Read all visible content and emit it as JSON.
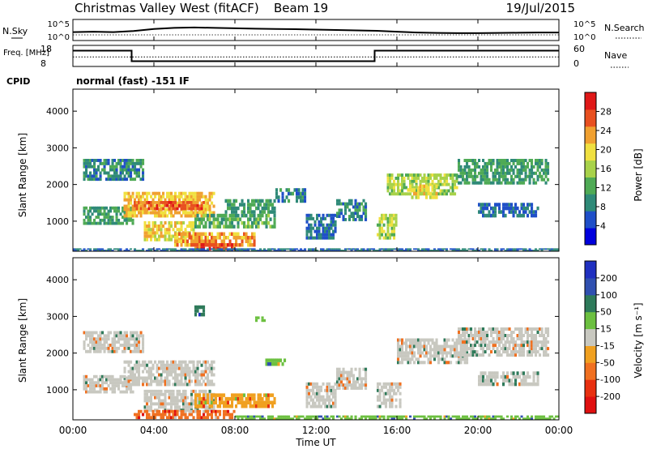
{
  "header": {
    "station": "Christmas Valley West (fitACF)",
    "beam": "Beam 19",
    "date": "19/Jul/2015"
  },
  "chart_data": [
    {
      "type": "line",
      "name": "noise-panel",
      "left_label": "N.Sky",
      "right_label": "N.Search",
      "left_ticks": [
        "10^5",
        "10^0"
      ],
      "right_ticks": [
        "10^5",
        "10^0"
      ],
      "series": [
        {
          "name": "N.Sky",
          "x": [
            0,
            1,
            2,
            3,
            4,
            5,
            6,
            7,
            8,
            9,
            10,
            11,
            12,
            13,
            14,
            15,
            16,
            17,
            18,
            19,
            20,
            21,
            22,
            23,
            24
          ],
          "y_fraction": [
            0.4,
            0.42,
            0.4,
            0.45,
            0.55,
            0.6,
            0.62,
            0.6,
            0.58,
            0.56,
            0.55,
            0.54,
            0.52,
            0.5,
            0.48,
            0.46,
            0.42,
            0.38,
            0.36,
            0.35,
            0.35,
            0.36,
            0.37,
            0.38,
            0.38
          ]
        }
      ]
    },
    {
      "type": "line",
      "name": "freq-panel",
      "left_label": "Freq. [MHz]",
      "right_label": "Nave",
      "left_ticks": [
        "18",
        "8"
      ],
      "right_ticks": [
        "60",
        "0"
      ],
      "series": [
        {
          "name": "Freq",
          "x": [
            0,
            2.9,
            2.9,
            14.9,
            14.9,
            24
          ],
          "y": [
            15.5,
            15.5,
            10.5,
            10.5,
            15.5,
            15.5
          ]
        },
        {
          "name": "Nave",
          "x": [
            0,
            24
          ],
          "y": [
            27,
            27
          ]
        }
      ]
    },
    {
      "type": "heatmap",
      "name": "power-panel",
      "cpid_label": "CPID",
      "cpid_text": "normal (fast) -151 IF",
      "ylabel": "Slant Range [km]",
      "ylim": [
        180,
        4600
      ],
      "yticks": [
        "1000",
        "2000",
        "3000",
        "4000"
      ],
      "colorbar": {
        "label": "Power [dB]",
        "ticks": [
          "4",
          "8",
          "12",
          "16",
          "20",
          "24",
          "28"
        ],
        "range": [
          0,
          32
        ],
        "colors": [
          "#0000dd",
          "#1f4fc8",
          "#2f8a78",
          "#4faa55",
          "#a8d24a",
          "#f0e040",
          "#f0a030",
          "#e85020",
          "#e01818"
        ]
      },
      "blobs": [
        {
          "t0": 0.5,
          "t1": 3.5,
          "r0": 2100,
          "r1": 2700,
          "v": 8
        },
        {
          "t0": 0.5,
          "t1": 3.0,
          "r0": 900,
          "r1": 1400,
          "v": 10
        },
        {
          "t0": 2.5,
          "t1": 7.0,
          "r0": 1100,
          "r1": 1800,
          "v": 22
        },
        {
          "t0": 3.0,
          "t1": 6.5,
          "r0": 1300,
          "r1": 1550,
          "v": 28
        },
        {
          "t0": 3.5,
          "t1": 6.0,
          "r0": 450,
          "r1": 1000,
          "v": 20
        },
        {
          "t0": 5.0,
          "t1": 9.0,
          "r0": 300,
          "r1": 700,
          "v": 24
        },
        {
          "t0": 6.0,
          "t1": 8.0,
          "r0": 200,
          "r1": 400,
          "v": 28
        },
        {
          "t0": 6.0,
          "t1": 10.0,
          "r0": 800,
          "r1": 1200,
          "v": 12
        },
        {
          "t0": 7.5,
          "t1": 10.0,
          "r0": 1200,
          "r1": 1600,
          "v": 10
        },
        {
          "t0": 10.0,
          "t1": 11.5,
          "r0": 1500,
          "r1": 1900,
          "v": 8
        },
        {
          "t0": 11.5,
          "t1": 13.0,
          "r0": 500,
          "r1": 1200,
          "v": 6
        },
        {
          "t0": 13.0,
          "t1": 14.5,
          "r0": 1000,
          "r1": 1600,
          "v": 8
        },
        {
          "t0": 15.0,
          "t1": 16.0,
          "r0": 500,
          "r1": 1200,
          "v": 16
        },
        {
          "t0": 15.5,
          "t1": 19.0,
          "r0": 1700,
          "r1": 2300,
          "v": 16
        },
        {
          "t0": 16.5,
          "t1": 18.0,
          "r0": 1600,
          "r1": 2000,
          "v": 20
        },
        {
          "t0": 19.0,
          "t1": 23.5,
          "r0": 2000,
          "r1": 2700,
          "v": 10
        },
        {
          "t0": 20.0,
          "t1": 23.0,
          "r0": 1100,
          "r1": 1500,
          "v": 6
        },
        {
          "t0": 0.0,
          "t1": 24.0,
          "r0": 180,
          "r1": 260,
          "v": 6
        }
      ]
    },
    {
      "type": "heatmap",
      "name": "velocity-panel",
      "ylabel": "Slant Range [km]",
      "xlabel": "Time UT",
      "ylim": [
        180,
        4600
      ],
      "yticks": [
        "1000",
        "2000",
        "3000",
        "4000"
      ],
      "xticks": [
        "00:00",
        "04:00",
        "08:00",
        "12:00",
        "16:00",
        "20:00",
        "00:00"
      ],
      "colorbar": {
        "label": "Velocity [m s⁻¹]",
        "ticks": [
          "200",
          "100",
          "50",
          "15",
          "-15",
          "-50",
          "-100",
          "-200"
        ],
        "colors": [
          "#2030c0",
          "#3050b0",
          "#2e7a5a",
          "#6cc040",
          "#c8c8c0",
          "#f0a020",
          "#f07020",
          "#e83010",
          "#e01010"
        ]
      },
      "blobs": [
        {
          "t0": 0.5,
          "t1": 3.5,
          "r0": 2000,
          "r1": 2600,
          "c": 4
        },
        {
          "t0": 0.5,
          "t1": 3.0,
          "r0": 900,
          "r1": 1400,
          "c": 4
        },
        {
          "t0": 2.5,
          "t1": 7.0,
          "r0": 1100,
          "r1": 1800,
          "c": 4
        },
        {
          "t0": 3.5,
          "t1": 7.0,
          "r0": 400,
          "r1": 1000,
          "c": 4
        },
        {
          "t0": 6.0,
          "t1": 10.0,
          "r0": 500,
          "r1": 900,
          "c": 5
        },
        {
          "t0": 3.0,
          "t1": 8.0,
          "r0": 200,
          "r1": 450,
          "c": 6
        },
        {
          "t0": 9.5,
          "t1": 10.5,
          "r0": 1650,
          "r1": 1850,
          "c": 3
        },
        {
          "t0": 11.5,
          "t1": 13.0,
          "r0": 500,
          "r1": 1200,
          "c": 4
        },
        {
          "t0": 13.0,
          "t1": 14.5,
          "r0": 1000,
          "r1": 1600,
          "c": 4
        },
        {
          "t0": 15.0,
          "t1": 16.2,
          "r0": 500,
          "r1": 1200,
          "c": 4
        },
        {
          "t0": 16.0,
          "t1": 19.5,
          "r0": 1700,
          "r1": 2400,
          "c": 4
        },
        {
          "t0": 19.0,
          "t1": 23.5,
          "r0": 1900,
          "r1": 2700,
          "c": 4
        },
        {
          "t0": 20.0,
          "t1": 23.0,
          "r0": 1100,
          "r1": 1500,
          "c": 4
        },
        {
          "t0": 8.0,
          "t1": 24.0,
          "r0": 180,
          "r1": 300,
          "c": 3
        },
        {
          "t0": 6.0,
          "t1": 6.5,
          "r0": 3000,
          "r1": 3300,
          "c": 2
        },
        {
          "t0": 9.0,
          "t1": 9.5,
          "r0": 2850,
          "r1": 3000,
          "c": 3
        }
      ]
    }
  ]
}
